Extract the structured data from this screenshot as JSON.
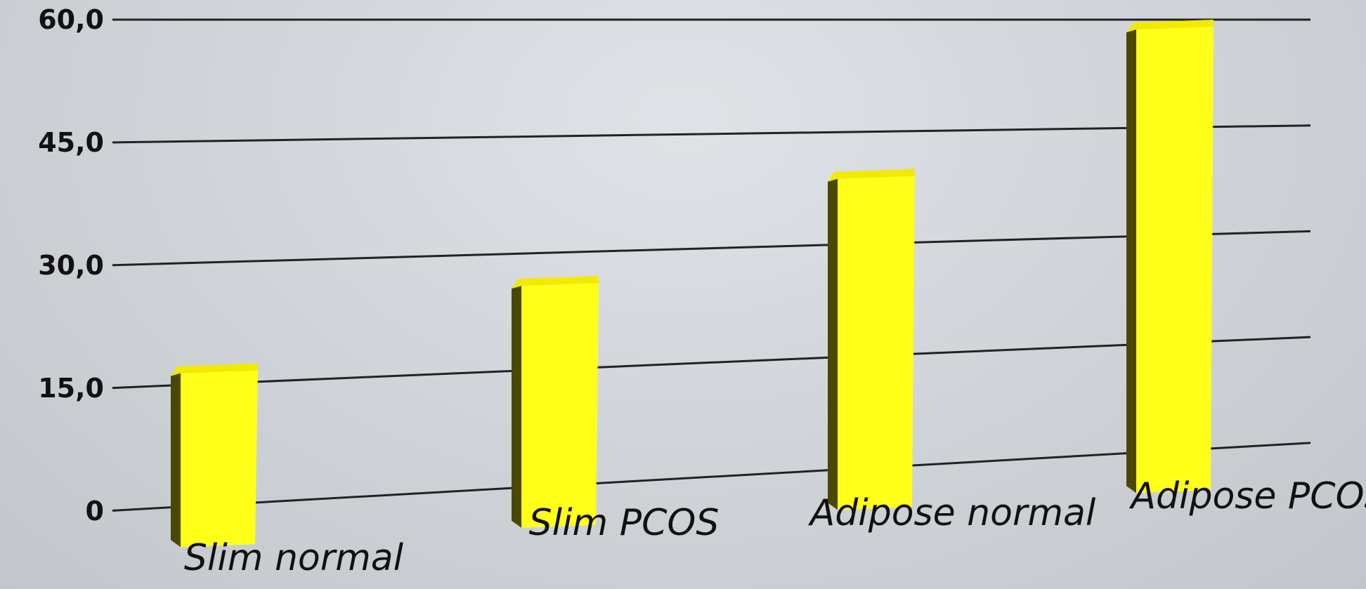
{
  "chart_data": {
    "type": "bar",
    "title": "",
    "xlabel": "",
    "ylabel": "",
    "categories": [
      "Slim normal",
      "Slim PCOS",
      "Adipose normal",
      "Adipose PCOS"
    ],
    "values": [
      17.5,
      27,
      40,
      60
    ],
    "ylim": [
      0,
      60
    ],
    "yticks": [
      "0",
      "15,0",
      "30,0",
      "45,0",
      "60,0"
    ],
    "ytick_values": [
      0,
      15,
      30,
      45,
      60
    ],
    "grid": true,
    "legend": "none",
    "style": "3d-perspective",
    "bar_color": "#ffff1a",
    "bar_side_color": "#4a4800",
    "bar_top_color": "#f2ea00"
  }
}
